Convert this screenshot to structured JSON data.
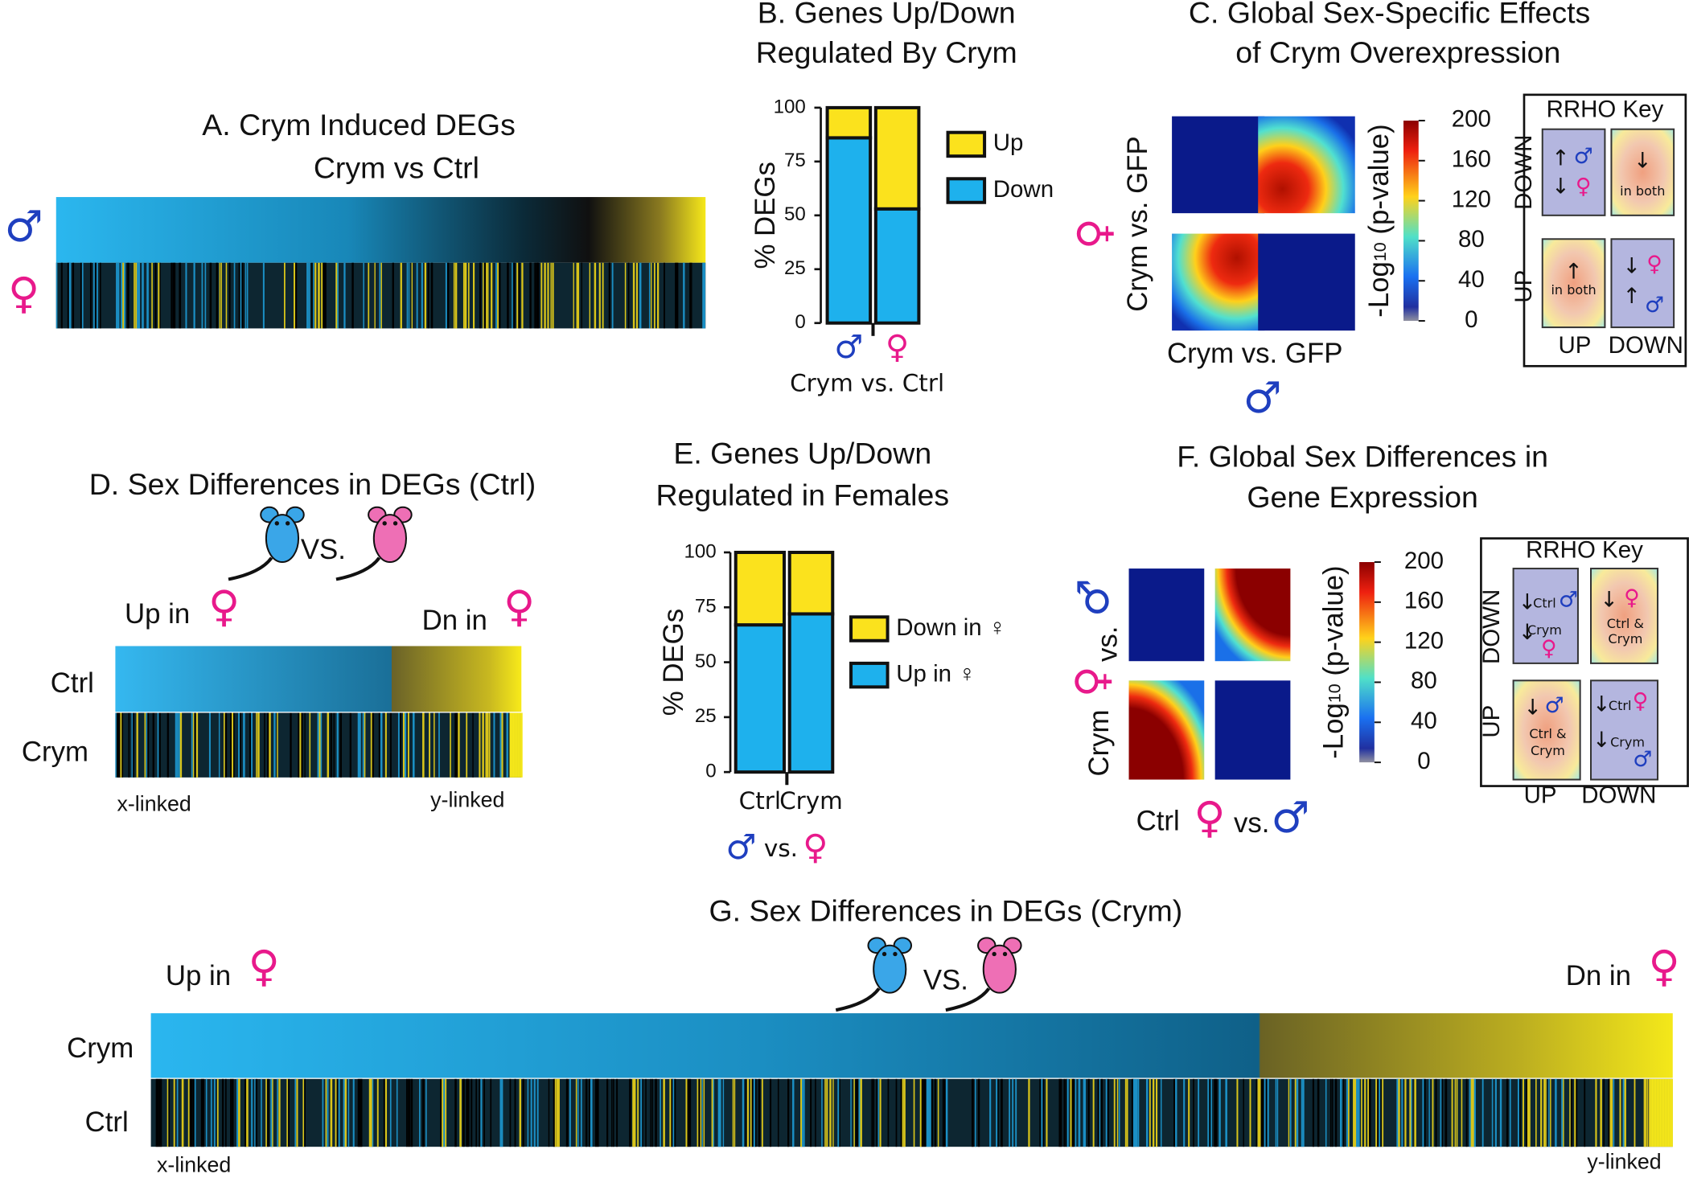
{
  "chart_data": [
    {
      "type": "bar",
      "stacked": true,
      "title": [
        "B. Genes Up/Down",
        "Regulated By Crym"
      ],
      "categories": [
        "♂",
        "♀"
      ],
      "category_colors": [
        "#1f3fbf",
        "#e8198b"
      ],
      "xlabel": [
        "Crym vs. Ctrl"
      ],
      "xlabel_colors": [
        "#111111"
      ],
      "ylabel": "% DEGs",
      "ylim": [
        0,
        100
      ],
      "yticks": [
        0,
        25,
        50,
        75,
        100
      ],
      "series": [
        {
          "name": "Down",
          "color": "#1eb1ed",
          "values": [
            86,
            53
          ]
        },
        {
          "name": "Up",
          "color": "#fbe21d",
          "values": [
            14,
            47
          ]
        }
      ]
    },
    {
      "type": "bar",
      "stacked": true,
      "title": [
        "E. Genes Up/Down",
        "Regulated in Females"
      ],
      "categories": [
        "Ctrl",
        "Crym"
      ],
      "category_colors": [
        "#111111",
        "#111111"
      ],
      "xlabel": [
        "♂",
        "vs.",
        "♀"
      ],
      "xlabel_colors": [
        "#1f3fbf",
        "#111111",
        "#e8198b"
      ],
      "ylabel": "% DEGs",
      "ylim": [
        0,
        100
      ],
      "yticks": [
        0,
        25,
        50,
        75,
        100
      ],
      "series": [
        {
          "name": "Up in ♀",
          "color": "#1eb1ed",
          "values": [
            67,
            72
          ]
        },
        {
          "name": "Down in ♀",
          "color": "#fbe21d",
          "values": [
            33,
            28
          ]
        }
      ]
    }
  ],
  "panel_a": {
    "title": "A. Crym Induced DEGs",
    "subtitle": "Crym vs Ctrl",
    "rows": [
      "♂",
      "♀"
    ]
  },
  "panel_c": {
    "title": [
      "C. Global Sex-Specific Effects",
      "of Crym Overexpression"
    ],
    "ylabel": "Crym vs. GFP",
    "ysymbol": "♀",
    "xlabel": "Crym vs. GFP",
    "xsymbol": "♂",
    "colorbar": {
      "label": [
        "-Log",
        "10",
        " (p-value)"
      ],
      "lim": [
        0,
        200
      ],
      "ticks": [
        0,
        40,
        80,
        120,
        160,
        200
      ]
    },
    "key": {
      "title": "RRHO Key",
      "row_labels": [
        "DOWN",
        "UP"
      ],
      "col_labels": [
        "UP",
        "DOWN"
      ],
      "quadrants": [
        [
          "↑",
          "♂",
          "↓",
          "♀"
        ],
        [
          "↓",
          "in both"
        ],
        [
          "↑",
          "in both"
        ],
        [
          "↓",
          "♀",
          "↑",
          "♂"
        ]
      ]
    }
  },
  "panel_d": {
    "title": "D. Sex Differences in DEGs (Ctrl)",
    "vs": "VS.",
    "left": [
      "Up in",
      "♀"
    ],
    "right": [
      "Dn in",
      "♀"
    ],
    "rows": [
      "Ctrl",
      "Crym"
    ],
    "ends": [
      "x-linked",
      "y-linked"
    ]
  },
  "panel_f": {
    "title": [
      "F. Global Sex Differences in",
      "Gene Expression"
    ],
    "ylabel": [
      "Crym",
      "♀",
      "vs.",
      "♂"
    ],
    "xlabel": [
      "Ctrl",
      "♀",
      "vs.",
      "♂"
    ],
    "colorbar": {
      "label": [
        "-Log",
        "10",
        " (p-value)"
      ],
      "lim": [
        0,
        200
      ],
      "ticks": [
        0,
        40,
        80,
        120,
        160,
        200
      ]
    },
    "key": {
      "title": "RRHO Key",
      "row_labels": [
        "DOWN",
        "UP"
      ],
      "col_labels": [
        "UP",
        "DOWN"
      ],
      "quadrants": [
        [
          "↓",
          "Ctrl",
          "♂",
          "↓",
          "Crym",
          "♀"
        ],
        [
          "↓",
          "♀",
          "Ctrl &",
          "Crym"
        ],
        [
          "↓",
          "♂",
          "Ctrl &",
          "Crym"
        ],
        [
          "↓",
          "Ctrl",
          "♀",
          "↓",
          "Crym",
          "♂"
        ]
      ]
    }
  },
  "panel_g": {
    "title": "G. Sex Differences in DEGs (Crym)",
    "vs": "VS.",
    "left": [
      "Up in",
      "♀"
    ],
    "right": [
      "Dn in",
      "♀"
    ],
    "rows": [
      "Crym",
      "Ctrl"
    ],
    "ends": [
      "x-linked",
      "y-linked"
    ]
  }
}
